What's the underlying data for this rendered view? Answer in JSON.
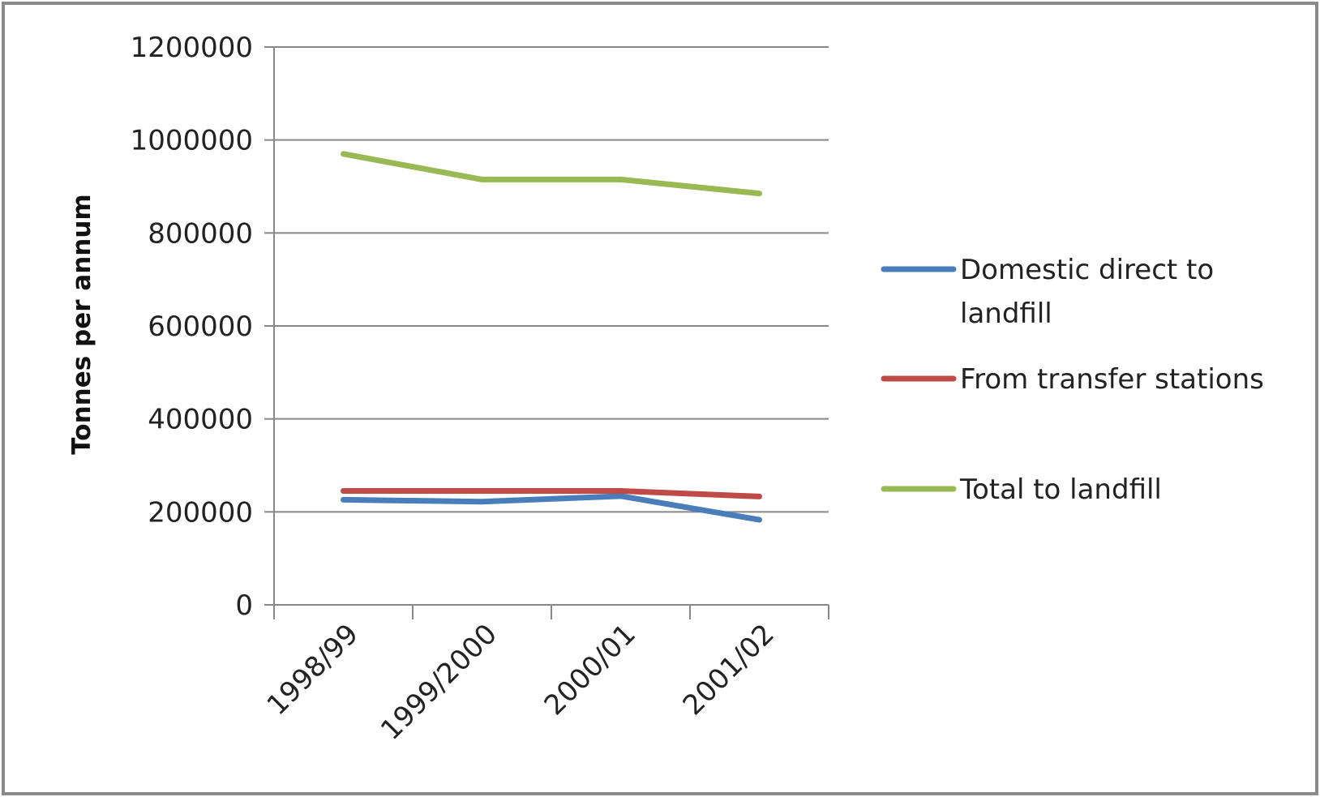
{
  "chart_data": {
    "type": "line",
    "title": "",
    "xlabel": "",
    "ylabel": "Tonnes per annum",
    "categories": [
      "1998/99",
      "1999/2000",
      "2000/01",
      "2001/02"
    ],
    "ylim": [
      0,
      1200000
    ],
    "yticks": [
      0,
      200000,
      400000,
      600000,
      800000,
      1000000,
      1200000
    ],
    "ytick_labels": [
      "0",
      "200000",
      "400000",
      "600000",
      "800000",
      "1000000",
      "1200000"
    ],
    "grid": true,
    "legend_position": "right",
    "series": [
      {
        "name": "Domestic direct to landfill",
        "legend_lines": [
          "Domestic direct to",
          "landfill"
        ],
        "color": "#4a7ebb",
        "values": [
          226000,
          222000,
          234000,
          183000
        ]
      },
      {
        "name": "From transfer stations",
        "legend_lines": [
          "From transfer stations"
        ],
        "color": "#be4b48",
        "values": [
          245000,
          245000,
          245000,
          233000
        ]
      },
      {
        "name": "Total to landfill",
        "legend_lines": [
          "Total to landfill"
        ],
        "color": "#98b954",
        "values": [
          970000,
          915000,
          915000,
          885000
        ]
      }
    ]
  }
}
